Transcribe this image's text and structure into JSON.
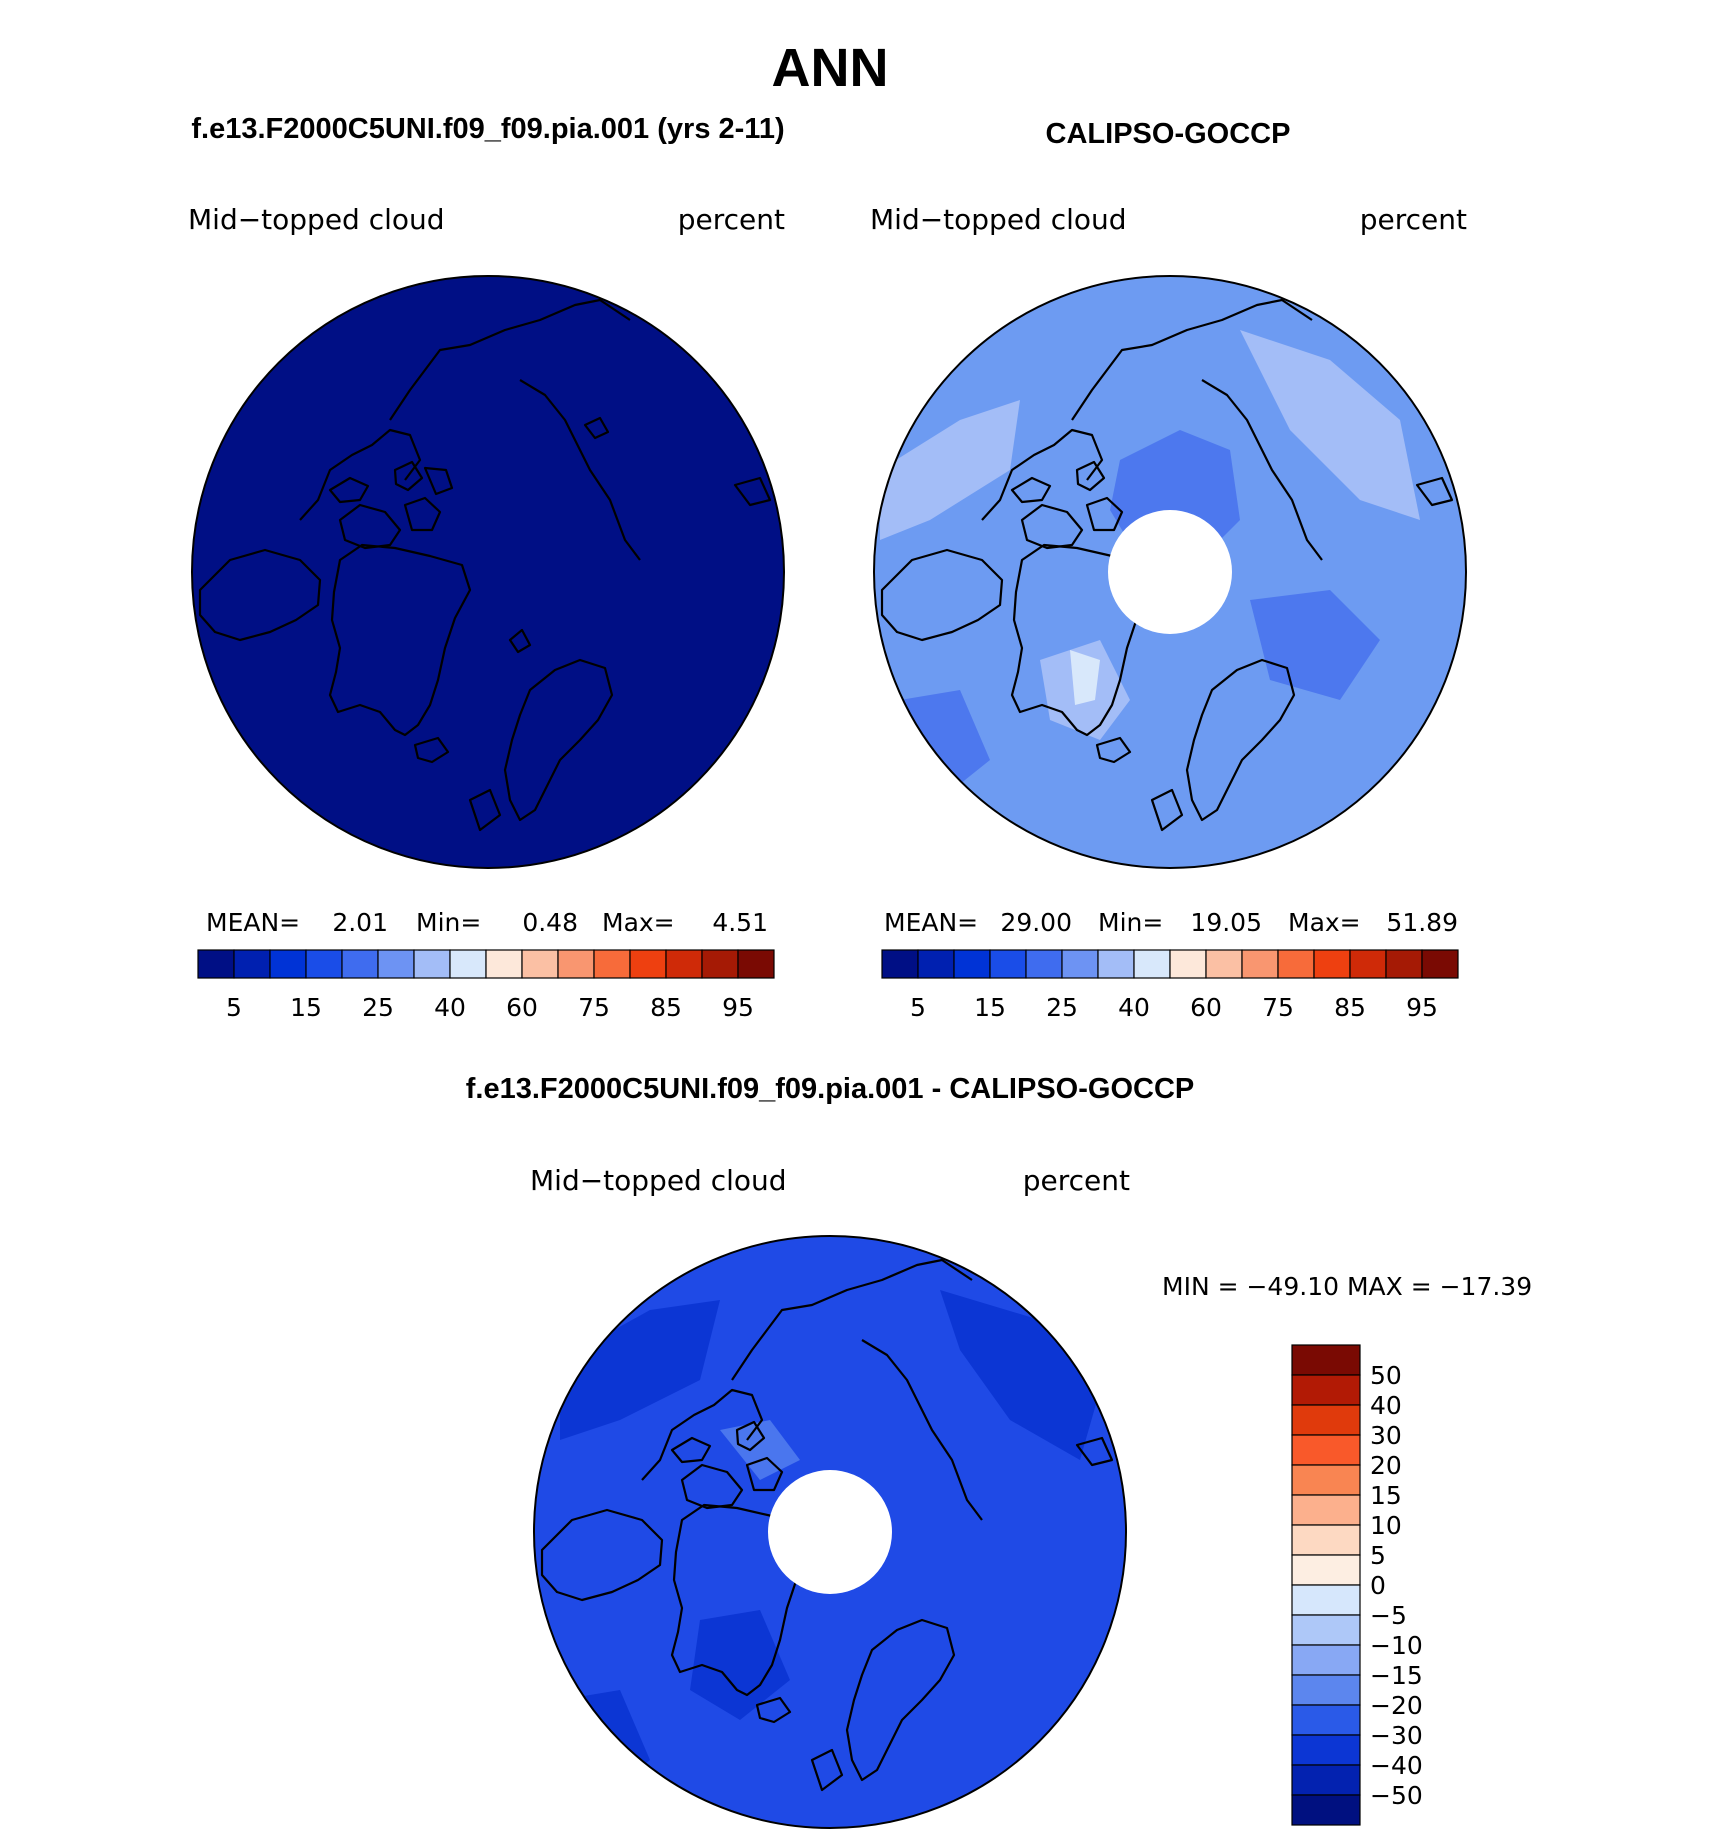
{
  "title": "ANN",
  "panels": [
    {
      "id": "model",
      "heading": "f.e13.F2000C5UNI.f09_f09.pia.001 (yrs 2-11)",
      "variable": "Mid−topped cloud",
      "units": "percent",
      "stats": {
        "mean_label": "MEAN=",
        "mean": "2.01",
        "min_label": "Min=",
        "min": "0.48",
        "max_label": "Max=",
        "max": "4.51"
      },
      "fill_color": "#000f85",
      "has_polar_hole": false
    },
    {
      "id": "obs",
      "heading": "CALIPSO-GOCCP",
      "variable": "Mid−topped cloud",
      "units": "percent",
      "stats": {
        "mean_label": "MEAN=",
        "mean": "29.00",
        "min_label": "Min=",
        "min": "19.05",
        "max_label": "Max=",
        "max": "51.89"
      },
      "fill_color": "#6d9bf2",
      "has_polar_hole": true
    },
    {
      "id": "diff",
      "heading": "f.e13.F2000C5UNI.f09_f09.pia.001 - CALIPSO-GOCCP",
      "variable": "Mid−topped cloud",
      "units": "percent",
      "stats_text": "MIN = −49.10 MAX = −17.39",
      "fill_color": "#1f4ae6",
      "has_polar_hole": true
    }
  ],
  "colorbar_abs": {
    "colors": [
      "#000f85",
      "#0020b0",
      "#0033d6",
      "#1a4de8",
      "#3f6cef",
      "#6d93f3",
      "#a3bdf7",
      "#d8e8fb",
      "#fde8da",
      "#fbc0a4",
      "#f99670",
      "#f76b3a",
      "#ee4010",
      "#cf2a08",
      "#a51a05",
      "#7a0a03"
    ],
    "tick_labels": [
      "5",
      "15",
      "25",
      "40",
      "60",
      "75",
      "85",
      "95"
    ]
  },
  "colorbar_diff": {
    "colors": [
      "#7a0a03",
      "#b21a05",
      "#e03a0c",
      "#f9592a",
      "#f98552",
      "#fcb08d",
      "#fdd9c2",
      "#fdeee2",
      "#d6e7fc",
      "#aec8f8",
      "#88a8f4",
      "#5c86ee",
      "#2a5ae8",
      "#0c36d4",
      "#0322b0",
      "#001080"
    ],
    "tick_labels": [
      "50",
      "40",
      "30",
      "20",
      "15",
      "10",
      "5",
      "0",
      "−5",
      "−10",
      "−15",
      "−20",
      "−30",
      "−40",
      "−50"
    ]
  },
  "icons": {
    "coastlines": "coastline-outline",
    "projection": "north-polar-stereographic"
  }
}
